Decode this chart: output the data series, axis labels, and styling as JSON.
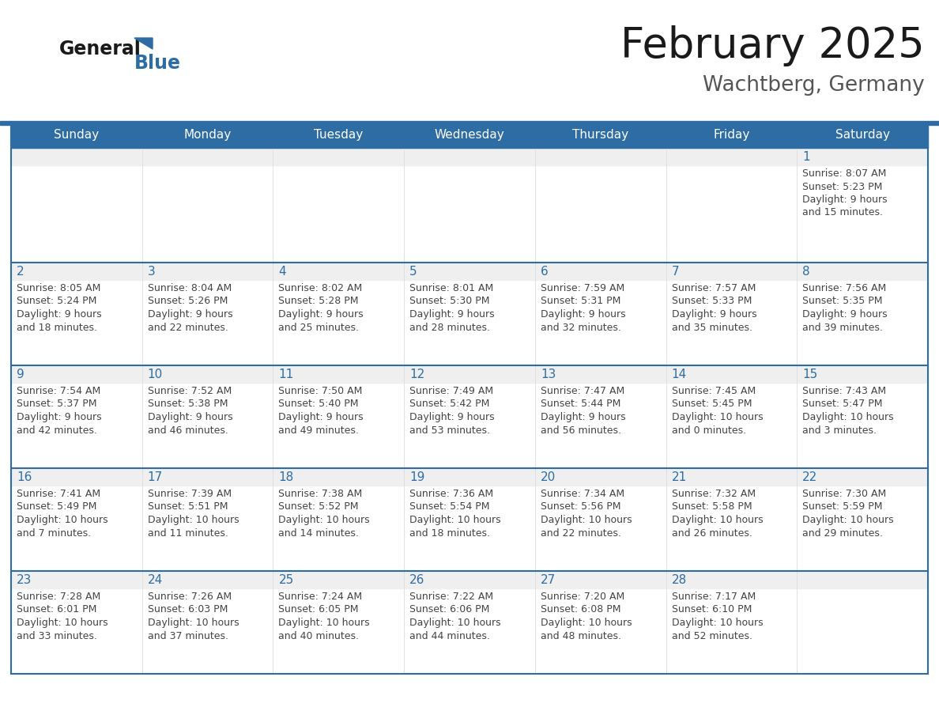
{
  "title": "February 2025",
  "subtitle": "Wachtberg, Germany",
  "header_bg": "#2E6DA4",
  "header_text": "#FFFFFF",
  "cell_bg": "#FFFFFF",
  "row_top_bg": "#EFEFEF",
  "border_color": "#2E6DA4",
  "text_color_day": "#2E6DA4",
  "text_color_info": "#444444",
  "days_of_week": [
    "Sunday",
    "Monday",
    "Tuesday",
    "Wednesday",
    "Thursday",
    "Friday",
    "Saturday"
  ],
  "calendar_data": [
    [
      null,
      null,
      null,
      null,
      null,
      null,
      {
        "day": "1",
        "sunrise": "8:07 AM",
        "sunset": "5:23 PM",
        "daylight_h": "9 hours",
        "daylight_m": "and 15 minutes."
      }
    ],
    [
      {
        "day": "2",
        "sunrise": "8:05 AM",
        "sunset": "5:24 PM",
        "daylight_h": "9 hours",
        "daylight_m": "and 18 minutes."
      },
      {
        "day": "3",
        "sunrise": "8:04 AM",
        "sunset": "5:26 PM",
        "daylight_h": "9 hours",
        "daylight_m": "and 22 minutes."
      },
      {
        "day": "4",
        "sunrise": "8:02 AM",
        "sunset": "5:28 PM",
        "daylight_h": "9 hours",
        "daylight_m": "and 25 minutes."
      },
      {
        "day": "5",
        "sunrise": "8:01 AM",
        "sunset": "5:30 PM",
        "daylight_h": "9 hours",
        "daylight_m": "and 28 minutes."
      },
      {
        "day": "6",
        "sunrise": "7:59 AM",
        "sunset": "5:31 PM",
        "daylight_h": "9 hours",
        "daylight_m": "and 32 minutes."
      },
      {
        "day": "7",
        "sunrise": "7:57 AM",
        "sunset": "5:33 PM",
        "daylight_h": "9 hours",
        "daylight_m": "and 35 minutes."
      },
      {
        "day": "8",
        "sunrise": "7:56 AM",
        "sunset": "5:35 PM",
        "daylight_h": "9 hours",
        "daylight_m": "and 39 minutes."
      }
    ],
    [
      {
        "day": "9",
        "sunrise": "7:54 AM",
        "sunset": "5:37 PM",
        "daylight_h": "9 hours",
        "daylight_m": "and 42 minutes."
      },
      {
        "day": "10",
        "sunrise": "7:52 AM",
        "sunset": "5:38 PM",
        "daylight_h": "9 hours",
        "daylight_m": "and 46 minutes."
      },
      {
        "day": "11",
        "sunrise": "7:50 AM",
        "sunset": "5:40 PM",
        "daylight_h": "9 hours",
        "daylight_m": "and 49 minutes."
      },
      {
        "day": "12",
        "sunrise": "7:49 AM",
        "sunset": "5:42 PM",
        "daylight_h": "9 hours",
        "daylight_m": "and 53 minutes."
      },
      {
        "day": "13",
        "sunrise": "7:47 AM",
        "sunset": "5:44 PM",
        "daylight_h": "9 hours",
        "daylight_m": "and 56 minutes."
      },
      {
        "day": "14",
        "sunrise": "7:45 AM",
        "sunset": "5:45 PM",
        "daylight_h": "10 hours",
        "daylight_m": "and 0 minutes."
      },
      {
        "day": "15",
        "sunrise": "7:43 AM",
        "sunset": "5:47 PM",
        "daylight_h": "10 hours",
        "daylight_m": "and 3 minutes."
      }
    ],
    [
      {
        "day": "16",
        "sunrise": "7:41 AM",
        "sunset": "5:49 PM",
        "daylight_h": "10 hours",
        "daylight_m": "and 7 minutes."
      },
      {
        "day": "17",
        "sunrise": "7:39 AM",
        "sunset": "5:51 PM",
        "daylight_h": "10 hours",
        "daylight_m": "and 11 minutes."
      },
      {
        "day": "18",
        "sunrise": "7:38 AM",
        "sunset": "5:52 PM",
        "daylight_h": "10 hours",
        "daylight_m": "and 14 minutes."
      },
      {
        "day": "19",
        "sunrise": "7:36 AM",
        "sunset": "5:54 PM",
        "daylight_h": "10 hours",
        "daylight_m": "and 18 minutes."
      },
      {
        "day": "20",
        "sunrise": "7:34 AM",
        "sunset": "5:56 PM",
        "daylight_h": "10 hours",
        "daylight_m": "and 22 minutes."
      },
      {
        "day": "21",
        "sunrise": "7:32 AM",
        "sunset": "5:58 PM",
        "daylight_h": "10 hours",
        "daylight_m": "and 26 minutes."
      },
      {
        "day": "22",
        "sunrise": "7:30 AM",
        "sunset": "5:59 PM",
        "daylight_h": "10 hours",
        "daylight_m": "and 29 minutes."
      }
    ],
    [
      {
        "day": "23",
        "sunrise": "7:28 AM",
        "sunset": "6:01 PM",
        "daylight_h": "10 hours",
        "daylight_m": "and 33 minutes."
      },
      {
        "day": "24",
        "sunrise": "7:26 AM",
        "sunset": "6:03 PM",
        "daylight_h": "10 hours",
        "daylight_m": "and 37 minutes."
      },
      {
        "day": "25",
        "sunrise": "7:24 AM",
        "sunset": "6:05 PM",
        "daylight_h": "10 hours",
        "daylight_m": "and 40 minutes."
      },
      {
        "day": "26",
        "sunrise": "7:22 AM",
        "sunset": "6:06 PM",
        "daylight_h": "10 hours",
        "daylight_m": "and 44 minutes."
      },
      {
        "day": "27",
        "sunrise": "7:20 AM",
        "sunset": "6:08 PM",
        "daylight_h": "10 hours",
        "daylight_m": "and 48 minutes."
      },
      {
        "day": "28",
        "sunrise": "7:17 AM",
        "sunset": "6:10 PM",
        "daylight_h": "10 hours",
        "daylight_m": "and 52 minutes."
      },
      null
    ]
  ],
  "logo_general_color": "#1a1a1a",
  "logo_blue_color": "#2E6DA4",
  "logo_triangle_color": "#2E6DA4",
  "title_color": "#1a1a1a",
  "subtitle_color": "#555555"
}
